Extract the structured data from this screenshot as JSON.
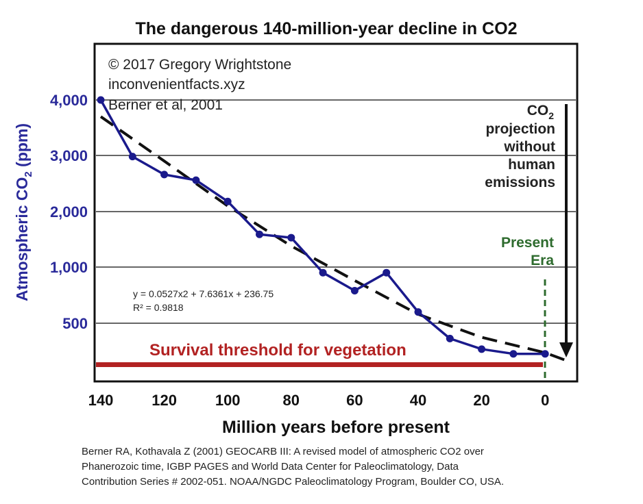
{
  "chart_data": {
    "type": "line",
    "title": "The dangerous 140-million-year decline in CO2",
    "xlabel": "Million years before present",
    "ylabel_prefix": "Atmospheric CO",
    "ylabel_sub": "2",
    "ylabel_suffix": " (ppm)",
    "xlim": [
      140,
      -10
    ],
    "x_ticks": [
      "140",
      "120",
      "100",
      "80",
      "60",
      "40",
      "20",
      "0"
    ],
    "x_tick_values": [
      140,
      120,
      100,
      80,
      60,
      40,
      20,
      0
    ],
    "y_ticks": [
      "4,000",
      "3,000",
      "2,000",
      "1,000",
      "500"
    ],
    "y_tick_values": [
      4000,
      3000,
      2000,
      1000,
      500
    ],
    "series": [
      {
        "x": [
          140,
          130,
          120,
          110,
          100,
          90,
          80,
          70,
          60,
          50,
          40,
          30,
          20,
          10,
          0
        ],
        "y": [
          4000,
          2980,
          2660,
          2560,
          2180,
          1590,
          1530,
          950,
          790,
          950,
          600,
          370,
          280,
          240,
          240
        ],
        "color": "#1a1a8c"
      }
    ],
    "trendline": {
      "x": [
        140,
        120,
        100,
        80,
        60,
        40,
        20,
        0,
        -8
      ],
      "y": [
        3700,
        2900,
        2100,
        1380,
        880,
        580,
        380,
        250,
        170
      ],
      "color": "#111111"
    },
    "credits": [
      "© 2017 Gregory Wrightstone",
      "inconvenientfacts.xyz",
      "Berner et al, 2001"
    ],
    "equation_line1": "y = 0.0527x2 + 7.6361x + 236.75",
    "equation_line2": "R² = 0.9818",
    "projection": {
      "line1_prefix": "CO",
      "line1_sub": "2",
      "lines": [
        "projection",
        "without",
        "human",
        "emissions"
      ]
    },
    "present_era": [
      "Present",
      "Era"
    ],
    "threshold_label": "Survival threshold for vegetation",
    "threshold_color": "#b22222",
    "citation": [
      "Berner RA, Kothavala Z (2001) GEOCARB III: A revised model of atmospheric CO2 over",
      "Phanerozoic time, IGBP PAGES and World Data Center for Paleoclimatology, Data",
      "Contribution Series # 2002-051. NOAA/NGDC Paleoclimatology Program, Boulder CO, USA."
    ]
  }
}
